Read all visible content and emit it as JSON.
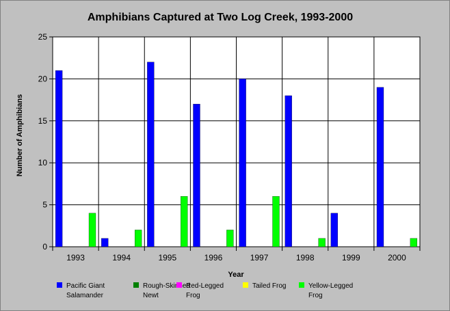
{
  "chart_data": {
    "type": "bar",
    "title": "Amphibians Captured at Two Log Creek, 1993-2000",
    "xlabel": "Year",
    "ylabel": "Number of Amphibians",
    "ylim": [
      0,
      25
    ],
    "yticks": [
      0,
      5,
      10,
      15,
      20,
      25
    ],
    "categories": [
      "1993",
      "1994",
      "1995",
      "1996",
      "1997",
      "1998",
      "1999",
      "2000"
    ],
    "series": [
      {
        "name": "Pacific Giant Salamander",
        "label_lines": [
          "Pacific Giant",
          "Salamander"
        ],
        "color": "#0000ff",
        "values": [
          21,
          1,
          22,
          17,
          20,
          18,
          4,
          19
        ]
      },
      {
        "name": "Rough-Skinned Newt",
        "label_lines": [
          "Rough-Skinned",
          "Newt"
        ],
        "color": "#008000",
        "values": [
          0,
          0,
          0,
          0,
          0,
          0,
          0,
          0
        ]
      },
      {
        "name": "Red-Legged Frog",
        "label_lines": [
          "Red-Legged",
          "Frog"
        ],
        "color": "#ff00ff",
        "values": [
          0,
          0,
          0,
          0,
          0,
          0,
          0,
          0
        ]
      },
      {
        "name": "Tailed Frog",
        "label_lines": [
          "Tailed Frog"
        ],
        "color": "#ffff00",
        "values": [
          0,
          0,
          0,
          0,
          0,
          0,
          0,
          0
        ]
      },
      {
        "name": "Yellow-Legged Frog",
        "label_lines": [
          "Yellow-Legged",
          "Frog"
        ],
        "color": "#00ff00",
        "values": [
          4,
          2,
          6,
          2,
          6,
          1,
          0,
          1
        ]
      }
    ],
    "grid": true,
    "legend_position": "bottom"
  }
}
